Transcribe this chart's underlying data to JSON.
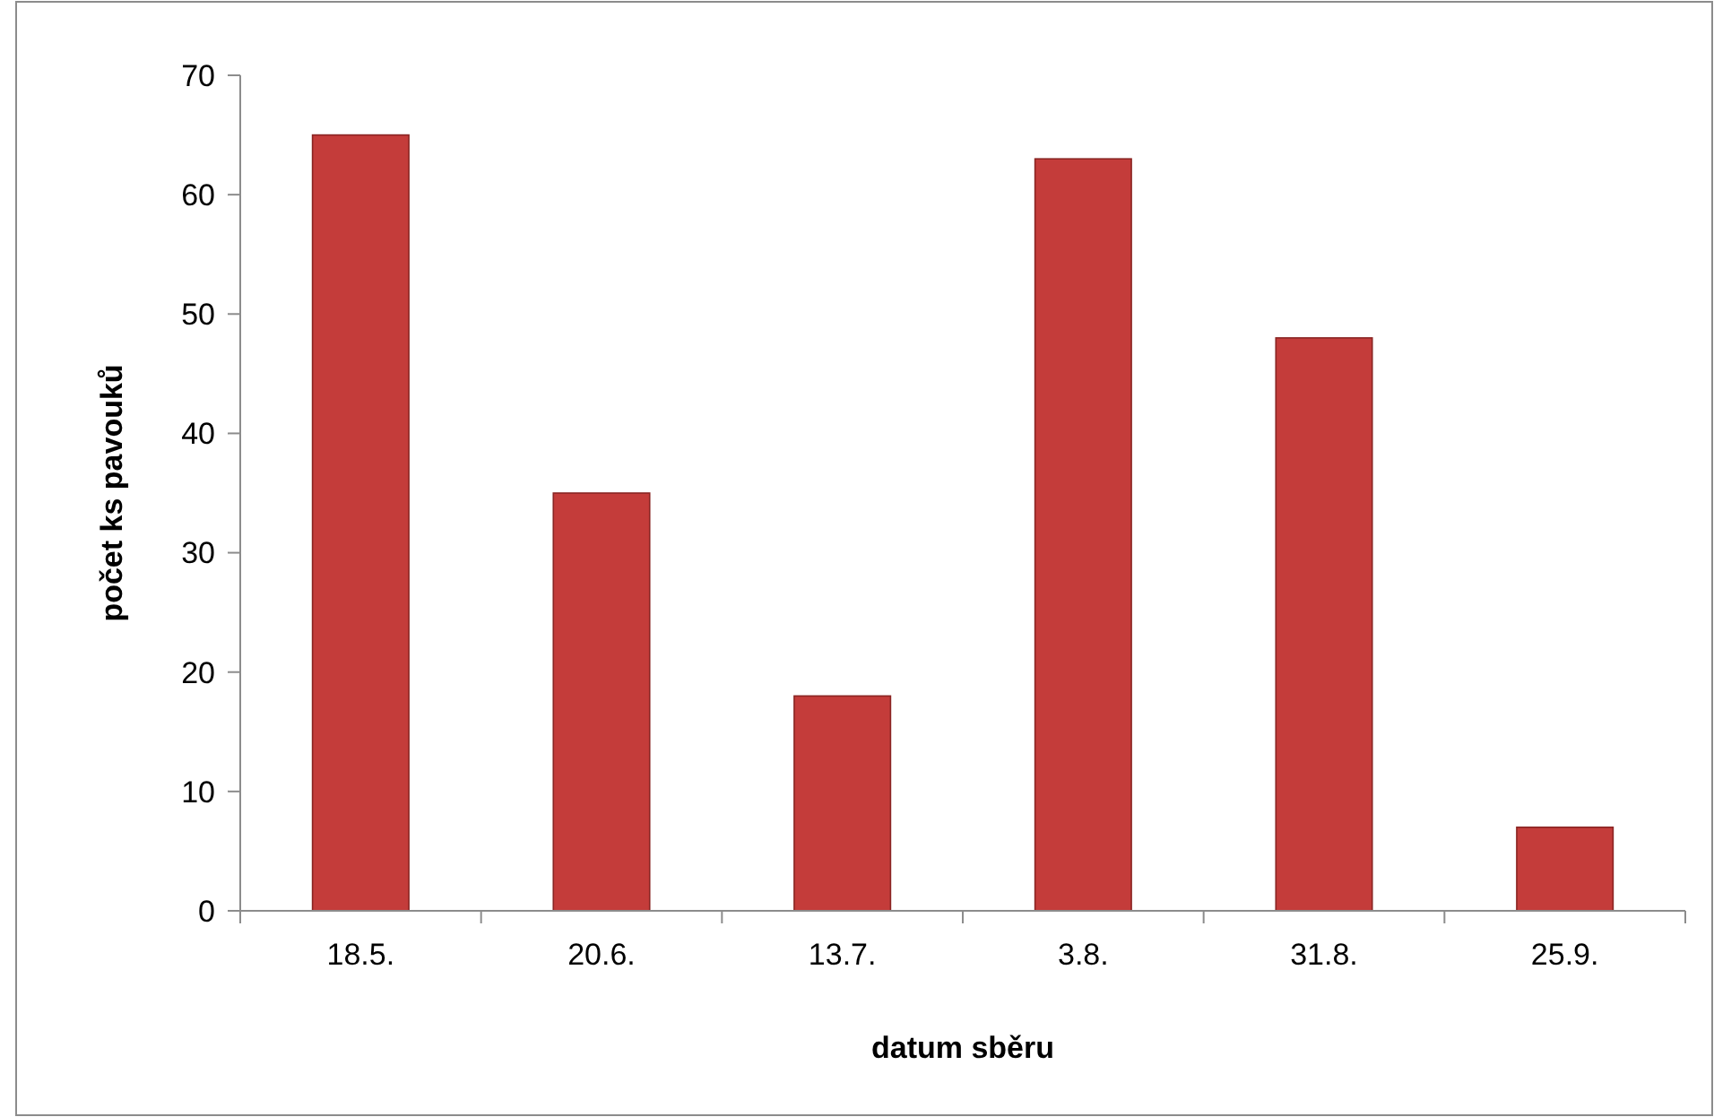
{
  "chart_data": {
    "type": "bar",
    "xlabel": "datum sběru",
    "ylabel": "počet ks pavouků",
    "categories": [
      "18.5.",
      "20.6.",
      "13.7.",
      "3.8.",
      "31.8.",
      "25.9."
    ],
    "values": [
      65,
      35,
      18,
      63,
      48,
      7
    ],
    "color": "#c43c3a",
    "ylim": [
      0,
      70
    ],
    "yticks": [
      0,
      10,
      20,
      30,
      40,
      50,
      60,
      70
    ],
    "grid": false
  }
}
